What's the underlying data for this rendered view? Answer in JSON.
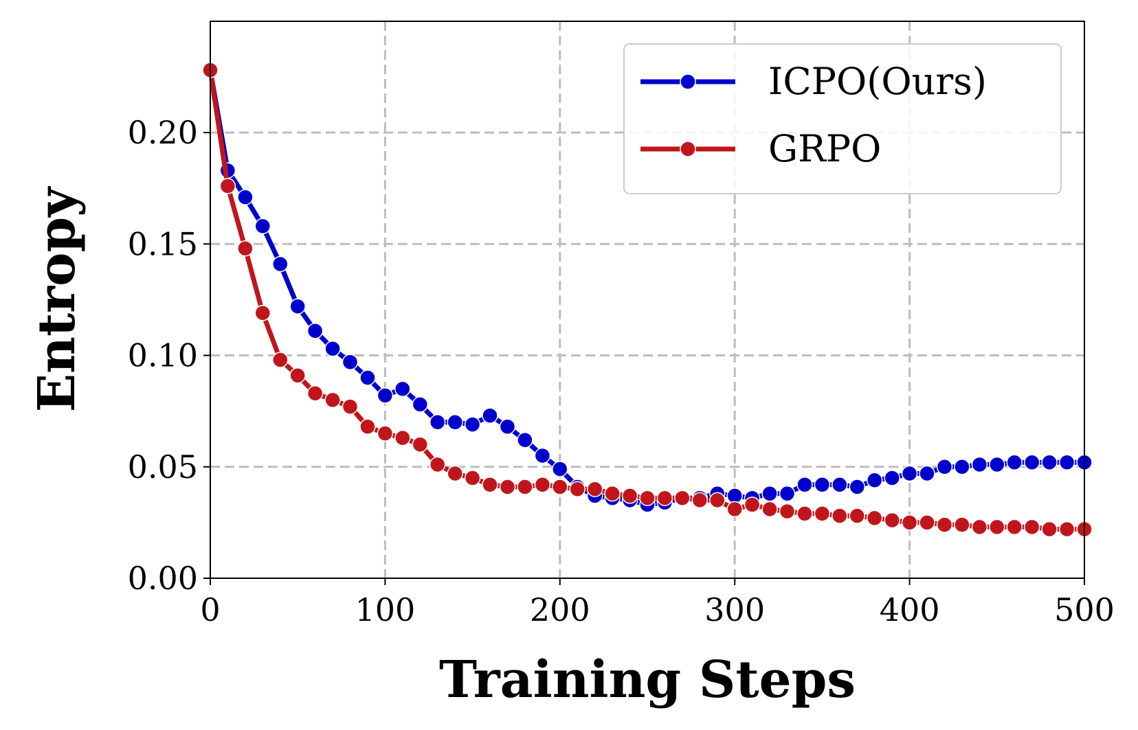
{
  "chart_data": {
    "type": "line",
    "xlabel": "Training Steps",
    "ylabel": "Entropy",
    "xlim": [
      0,
      500
    ],
    "ylim": [
      0,
      0.25
    ],
    "xticks": [
      "0",
      "100",
      "200",
      "300",
      "400",
      "500"
    ],
    "yticks": [
      "0.00",
      "0.05",
      "0.10",
      "0.15",
      "0.20"
    ],
    "grid": true,
    "legend_position": "top-right",
    "x": [
      0,
      10,
      20,
      30,
      40,
      50,
      60,
      70,
      80,
      90,
      100,
      110,
      120,
      130,
      140,
      150,
      160,
      170,
      180,
      190,
      200,
      210,
      220,
      230,
      240,
      250,
      260,
      270,
      280,
      290,
      300,
      310,
      320,
      330,
      340,
      350,
      360,
      370,
      380,
      390,
      400,
      410,
      420,
      430,
      440,
      450,
      460,
      470,
      480,
      490,
      500
    ],
    "series": [
      {
        "name": "ICPO(Ours)",
        "color": "#0000cc",
        "values": [
          0.228,
          0.183,
          0.171,
          0.158,
          0.141,
          0.122,
          0.111,
          0.103,
          0.097,
          0.09,
          0.082,
          0.085,
          0.078,
          0.07,
          0.07,
          0.069,
          0.073,
          0.068,
          0.062,
          0.055,
          0.049,
          0.041,
          0.037,
          0.036,
          0.035,
          0.033,
          0.034,
          0.036,
          0.036,
          0.038,
          0.037,
          0.036,
          0.038,
          0.038,
          0.042,
          0.042,
          0.042,
          0.041,
          0.044,
          0.045,
          0.047,
          0.047,
          0.05,
          0.05,
          0.051,
          0.051,
          0.052,
          0.052,
          0.052,
          0.052,
          0.052
        ]
      },
      {
        "name": "GRPO",
        "color": "#c0161b",
        "values": [
          0.228,
          0.176,
          0.148,
          0.119,
          0.098,
          0.091,
          0.083,
          0.08,
          0.077,
          0.068,
          0.065,
          0.063,
          0.06,
          0.051,
          0.047,
          0.045,
          0.042,
          0.041,
          0.041,
          0.042,
          0.041,
          0.04,
          0.04,
          0.038,
          0.037,
          0.036,
          0.036,
          0.036,
          0.035,
          0.035,
          0.031,
          0.033,
          0.031,
          0.03,
          0.029,
          0.029,
          0.028,
          0.028,
          0.027,
          0.026,
          0.025,
          0.025,
          0.024,
          0.024,
          0.023,
          0.023,
          0.023,
          0.023,
          0.022,
          0.022,
          0.022
        ]
      }
    ]
  }
}
